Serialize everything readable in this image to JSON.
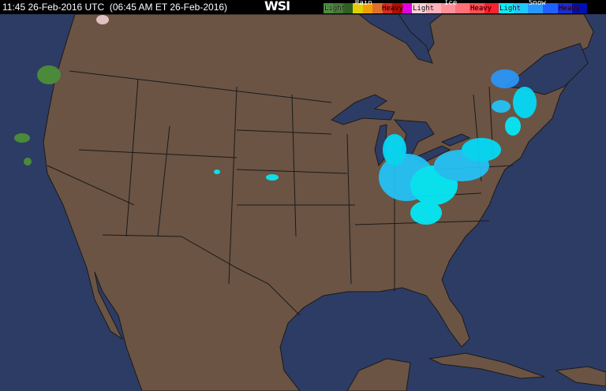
{
  "header": {
    "timestamp": "11:45 26-Feb-2016 UTC  (06:45 AM ET 26-Feb-2016)",
    "logo": "WSI"
  },
  "legend": {
    "rain": {
      "title": "Rain",
      "light": "Light",
      "heavy": "Heavy",
      "colors": [
        "#4a8a3a",
        "#3e7a30",
        "#2f6020",
        "#e0d000",
        "#f0a000",
        "#e07030",
        "#d03020",
        "#b01000",
        "#e000e0"
      ]
    },
    "ice": {
      "title": "Ice",
      "light": "Light",
      "heavy": "Heavy",
      "colors": [
        "#ffd0d8",
        "#ffb0b8",
        "#ff9098",
        "#ff7078",
        "#ff5058",
        "#ff2030"
      ]
    },
    "snow": {
      "title": "Snow",
      "light": "Light",
      "heavy": "Heavy",
      "colors": [
        "#00f0ff",
        "#20c8ff",
        "#2898ff",
        "#2060ff",
        "#1030e0",
        "#0010b0"
      ]
    }
  },
  "map": {
    "land_color": "#6b5444",
    "water_color": "#2d3c65",
    "border_color": "#1a1a1a"
  }
}
